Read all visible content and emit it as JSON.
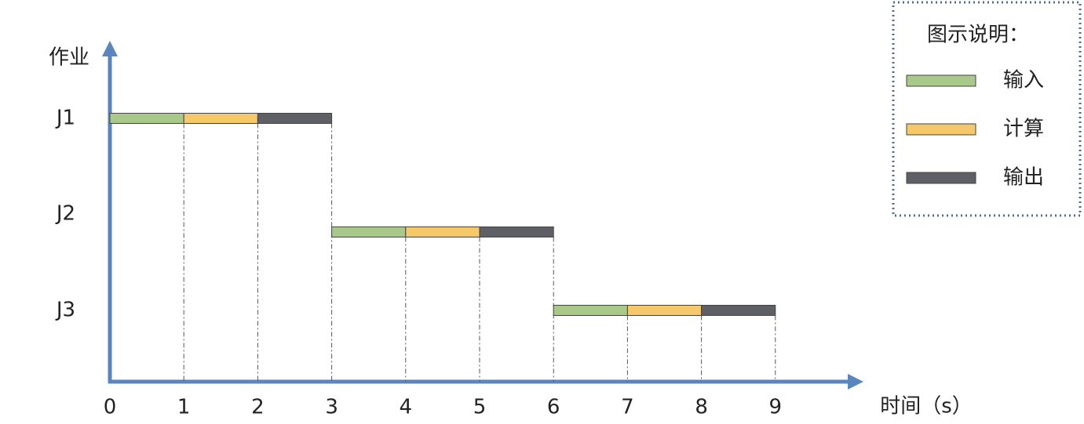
{
  "chart_data": {
    "type": "gantt",
    "y_label": "作业",
    "x_label": "时间（s）",
    "legend_title": "图示说明：",
    "categories": [
      "J1",
      "J2",
      "J3"
    ],
    "start": [
      0,
      3,
      6
    ],
    "series": [
      {
        "name": "输入",
        "color": "#a9c98b",
        "values": [
          1,
          1,
          1
        ]
      },
      {
        "name": "计算",
        "color": "#f5c96a",
        "values": [
          1,
          1,
          1
        ]
      },
      {
        "name": "输出",
        "color": "#5f5f66",
        "values": [
          1,
          1,
          1
        ]
      }
    ],
    "xlim": [
      0,
      10
    ],
    "xticks": [
      0,
      1,
      2,
      3,
      4,
      5,
      6,
      7,
      8,
      9
    ],
    "legend": "upper right"
  }
}
